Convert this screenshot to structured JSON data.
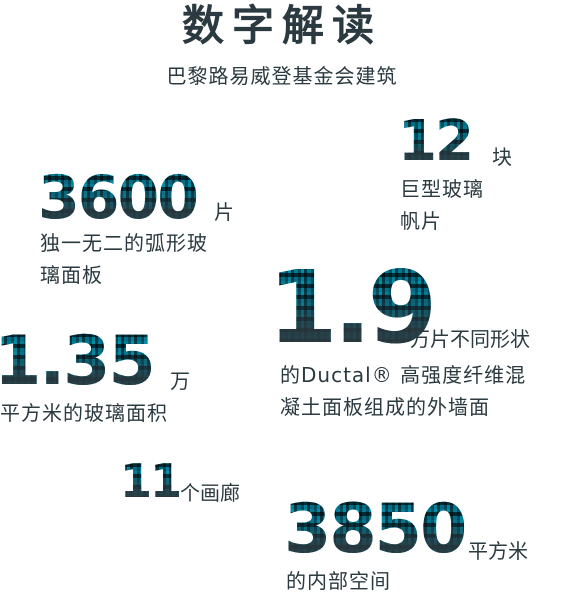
{
  "header": {
    "title": "数字解读",
    "subtitle": "巴黎路易威登基金会建筑"
  },
  "stats": [
    {
      "value": "3600",
      "unit": "片",
      "desc_lines": [
        "独一无二的弧形玻",
        "璃面板"
      ]
    },
    {
      "value": "12",
      "unit": "块",
      "desc_lines": [
        "巨型玻璃",
        "帆片"
      ]
    },
    {
      "value": "1.9",
      "unit": "万片不同形状",
      "desc_lines": [
        "的Ductal® 高强度纤维混",
        "凝土面板组成的外墙面"
      ]
    },
    {
      "value": "1.35",
      "unit": "万",
      "desc_lines": [
        "平方米的玻璃面积"
      ]
    },
    {
      "value": "11",
      "unit": "个画廊",
      "desc_lines": []
    },
    {
      "value": "3850",
      "unit": "平方米",
      "desc_lines": [
        "的内部空间"
      ]
    }
  ],
  "colors": {
    "text": "#2b3a40",
    "accent_teal": "#1aa7b8"
  }
}
